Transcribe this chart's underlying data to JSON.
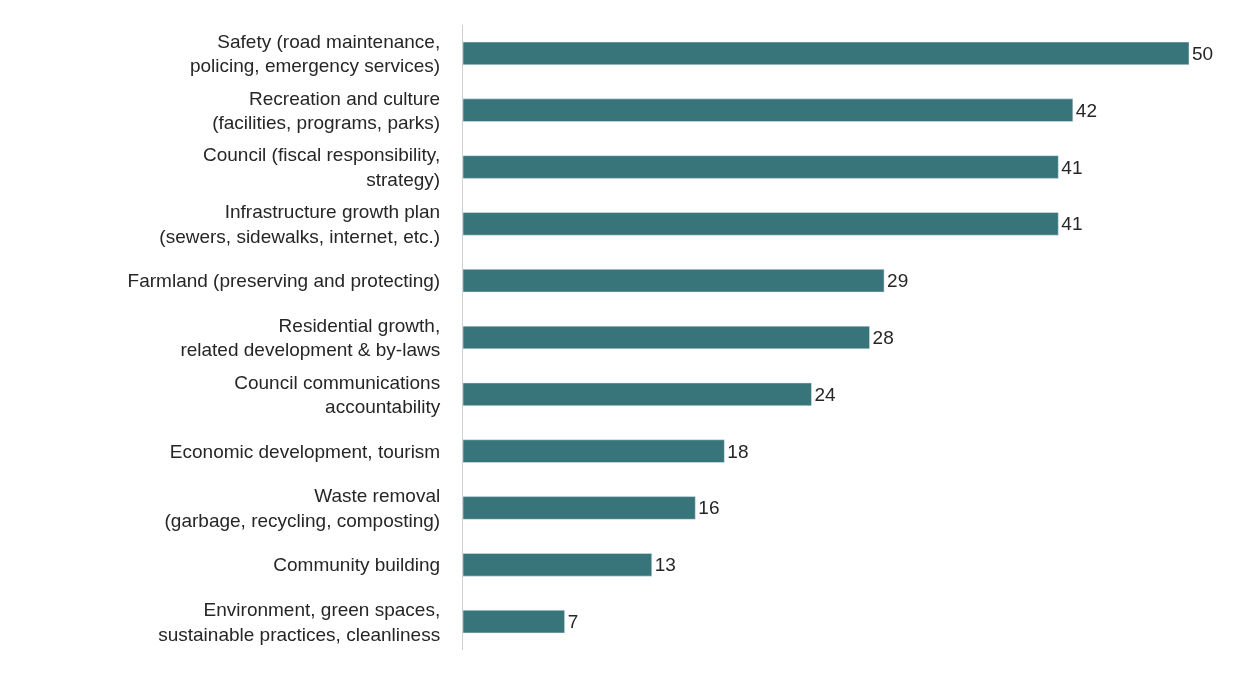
{
  "chart_data": {
    "type": "bar",
    "orientation": "horizontal",
    "categories": [
      "Safety (road maintenance,\npolicing, emergency services)",
      "Recreation and culture\n(facilities, programs, parks)",
      "Council (fiscal responsibility,\nstrategy)",
      "Infrastructure growth plan\n(sewers, sidewalks, internet, etc.)",
      "Farmland (preserving and protecting)",
      "Residential growth,\nrelated development & by-laws",
      "Council communications\naccountability",
      "Economic development, tourism",
      "Waste removal\n(garbage, recycling, composting)",
      "Community building",
      "Environment, green spaces,\nsustainable practices, cleanliness"
    ],
    "values": [
      50,
      42,
      41,
      41,
      29,
      28,
      24,
      18,
      16,
      13,
      7
    ],
    "color": "#37757a",
    "data_labels": true,
    "tick_labels": "y"
  }
}
